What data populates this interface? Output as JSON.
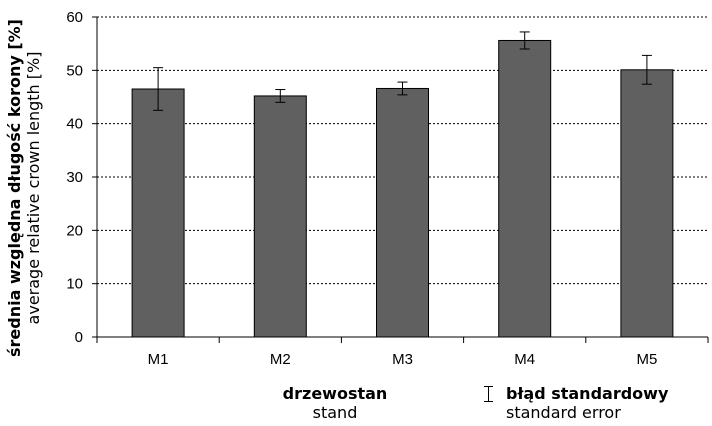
{
  "chart_data": {
    "type": "bar",
    "categories": [
      "M1",
      "M2",
      "M3",
      "M4",
      "M5"
    ],
    "values": [
      46.5,
      45.2,
      46.6,
      55.6,
      50.1
    ],
    "error": [
      4.0,
      1.2,
      1.2,
      1.6,
      2.7
    ],
    "ylim": [
      0,
      60
    ],
    "yticks": [
      0,
      10,
      20,
      30,
      40,
      50,
      60
    ],
    "ylabel": {
      "primary": "średnia względna długość korony [%]",
      "secondary": "average relative crown length [%]"
    },
    "xlabel": {
      "primary": "drzewostan",
      "secondary": "stand"
    },
    "legend": {
      "symbol": "Ι",
      "primary": "błąd standardowy",
      "secondary": "standard error",
      "placement": "bottom-right"
    },
    "grid": "horizontal dashed",
    "colors": {
      "bar_fill": "#606060",
      "bar_stroke": "#000000",
      "grid": "#000000"
    }
  }
}
